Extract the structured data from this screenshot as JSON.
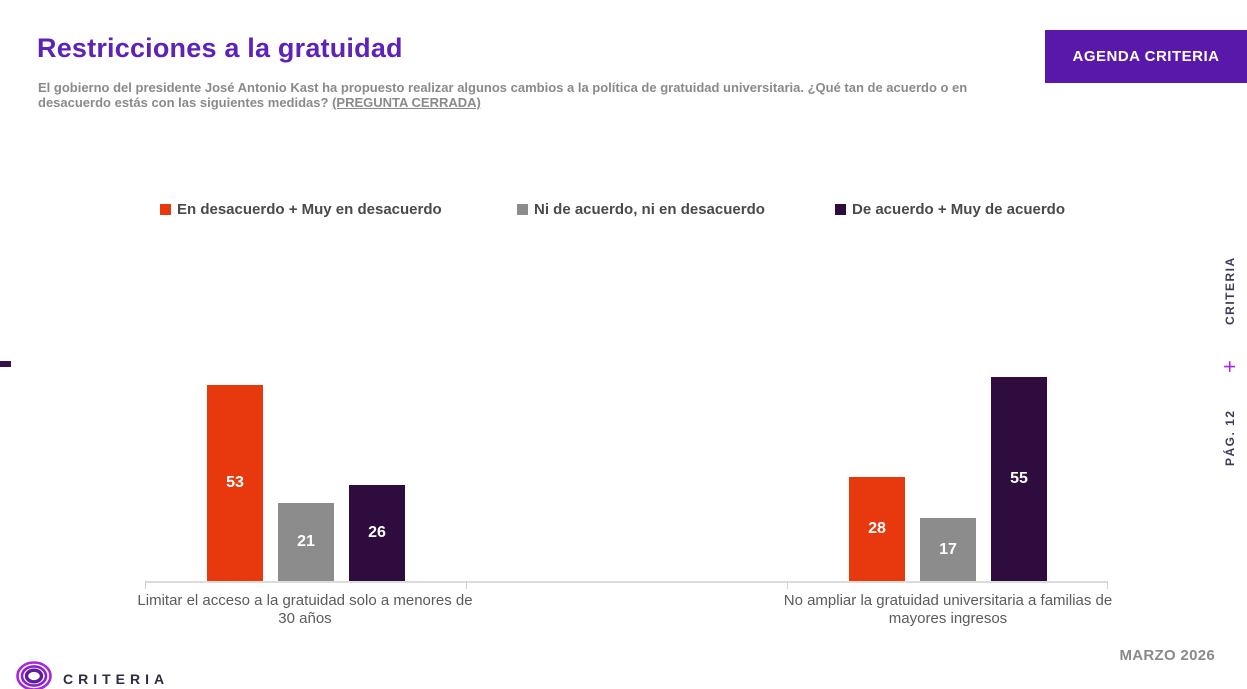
{
  "header": {
    "title": "Restricciones a la gratuidad",
    "subtitle": "El gobierno del presidente José Antonio Kast ha propuesto realizar algunos cambios a la política de gratuidad universitaria. ¿Qué tan de acuerdo o en desacuerdo estás con las siguientes medidas? ",
    "subtitle_tag": "(PREGUNTA CERRADA)",
    "agenda_button": "AGENDA CRITERIA"
  },
  "chart_data": {
    "type": "bar",
    "title": "Restricciones a la gratuidad",
    "categories": [
      "Limitar el acceso a la gratuidad solo a menores de 30 años",
      "No ampliar la gratuidad universitaria a familias de mayores ingresos"
    ],
    "series": [
      {
        "name": "En desacuerdo + Muy en desacuerdo",
        "color": "#e8380d",
        "values": [
          53,
          28
        ]
      },
      {
        "name": "Ni de acuerdo, ni en desacuerdo",
        "color": "#8c8c8c",
        "values": [
          21,
          17
        ]
      },
      {
        "name": "De acuerdo + Muy de acuerdo",
        "color": "#2e0d3e",
        "values": [
          26,
          55
        ]
      }
    ],
    "value_labels": true,
    "legend_position": "top",
    "ylim": [
      0,
      60
    ],
    "grid": false,
    "axis_color": "#dcdcdc"
  },
  "right_strip": {
    "brand": "CRITERIA",
    "plus": "+",
    "page": "PÁG. 12"
  },
  "footer": {
    "date": "MARZO 2026",
    "brand": "CRITERIA"
  },
  "colors": {
    "title_purple": "#5e22b8",
    "button_purple": "#5a18aa",
    "accent_plus": "#a428e8"
  }
}
